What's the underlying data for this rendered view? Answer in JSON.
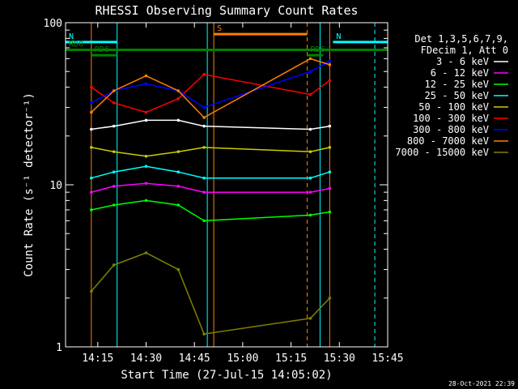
{
  "chart_data": {
    "type": "line",
    "title": "RHESSI Observing Summary Count Rates",
    "xlabel": "Start Time (27-Jul-15 14:05:02)",
    "ylabel": "Count Rate (s⁻¹ detector⁻¹)",
    "yscale": "log",
    "ylim": [
      1,
      100
    ],
    "xlim": [
      "14:05",
      "15:45"
    ],
    "x_ticks": [
      "14:15",
      "14:30",
      "14:45",
      "15:00",
      "15:15",
      "15:30",
      "15:45"
    ],
    "y_ticks": [
      "1",
      "10",
      "100"
    ],
    "timestamp": "28-Oct-2021 22:39",
    "legend_header": [
      "Det 1,3,5,6,7,9,",
      "FDecim 1, Att 0"
    ],
    "legend_position": "right",
    "series": [
      {
        "name": "3 - 6 keV",
        "color": "#000000",
        "t": [
          "14:13",
          "14:20",
          "14:30",
          "14:40",
          "14:48",
          "15:21",
          "15:27"
        ],
        "values": [
          22,
          23,
          25,
          25,
          23,
          22,
          23
        ]
      },
      {
        "name": "6 - 12 keV",
        "color": "#ff00ff",
        "t": [
          "14:13",
          "14:20",
          "14:30",
          "14:40",
          "14:48",
          "15:21",
          "15:27"
        ],
        "values": [
          9.0,
          9.8,
          10.2,
          9.8,
          9.0,
          9.0,
          9.5
        ]
      },
      {
        "name": "12 - 25 keV",
        "color": "#00ff00",
        "t": [
          "14:13",
          "14:20",
          "14:30",
          "14:40",
          "14:48",
          "15:21",
          "15:27"
        ],
        "values": [
          7.0,
          7.5,
          8.0,
          7.5,
          6.0,
          6.5,
          6.8
        ]
      },
      {
        "name": "25 - 50 keV",
        "color": "#00ffff",
        "t": [
          "14:13",
          "14:20",
          "14:30",
          "14:40",
          "14:48",
          "15:21",
          "15:27"
        ],
        "values": [
          11,
          12,
          13,
          12,
          11,
          11,
          12
        ]
      },
      {
        "name": "50 - 100 keV",
        "color": "#cccc00",
        "t": [
          "14:13",
          "14:20",
          "14:30",
          "14:40",
          "14:48",
          "15:21",
          "15:27"
        ],
        "values": [
          17,
          16,
          15,
          16,
          17,
          16,
          17
        ]
      },
      {
        "name": "100 - 300 keV",
        "color": "#ff0000",
        "t": [
          "14:13",
          "14:20",
          "14:30",
          "14:40",
          "14:48",
          "15:21",
          "15:27"
        ],
        "values": [
          40,
          32,
          28,
          34,
          48,
          36,
          44
        ]
      },
      {
        "name": "300 - 800 keV",
        "color": "#0000ff",
        "t": [
          "14:13",
          "14:20",
          "14:30",
          "14:40",
          "14:48",
          "15:21",
          "15:27"
        ],
        "values": [
          32,
          38,
          42,
          38,
          30,
          50,
          58
        ]
      },
      {
        "name": "800 - 7000 keV",
        "color": "#ff8000",
        "t": [
          "14:13",
          "14:20",
          "14:30",
          "14:40",
          "14:48",
          "15:21",
          "15:27"
        ],
        "values": [
          28,
          38,
          47,
          38,
          26,
          60,
          55
        ]
      },
      {
        "name": "7000 - 15000 keV",
        "color": "#808000",
        "t": [
          "14:13",
          "14:20",
          "14:30",
          "14:40",
          "14:48",
          "15:21",
          "15:27"
        ],
        "values": [
          2.2,
          3.2,
          3.8,
          3.0,
          1.2,
          1.5,
          2.0
        ]
      }
    ],
    "flags": [
      {
        "label": "S",
        "color": "#ff8000",
        "start": "14:51",
        "end": "15:20",
        "value": 85
      },
      {
        "label": "N",
        "color": "#00ffff",
        "start": "14:05",
        "end": "14:21",
        "value": 76
      },
      {
        "label": "N",
        "color": "#00ffff",
        "start": "15:28",
        "end": "15:45",
        "value": 76
      },
      {
        "label": "RD0",
        "color": "#008000",
        "start": "14:05",
        "end": "15:45",
        "value": 68
      },
      {
        "label": "RD6",
        "color": "#008000",
        "start": "14:13",
        "end": "14:21",
        "value": 63
      },
      {
        "label": "RD6",
        "color": "#008000",
        "start": "15:20",
        "end": "15:25",
        "value": 63
      }
    ],
    "vlines": [
      {
        "color": "#ff8000",
        "style": "solid",
        "t": "14:13"
      },
      {
        "color": "#00ffff",
        "style": "solid",
        "t": "14:21"
      },
      {
        "color": "#00ffff",
        "style": "solid",
        "t": "14:49"
      },
      {
        "color": "#ff8000",
        "style": "solid",
        "t": "14:51"
      },
      {
        "color": "#ff8000",
        "style": "dashed",
        "t": "15:20"
      },
      {
        "color": "#00ffff",
        "style": "solid",
        "t": "15:24"
      },
      {
        "color": "#ff8000",
        "style": "solid",
        "t": "15:27"
      },
      {
        "color": "#00ffff",
        "style": "dashed",
        "t": "15:41"
      }
    ]
  }
}
